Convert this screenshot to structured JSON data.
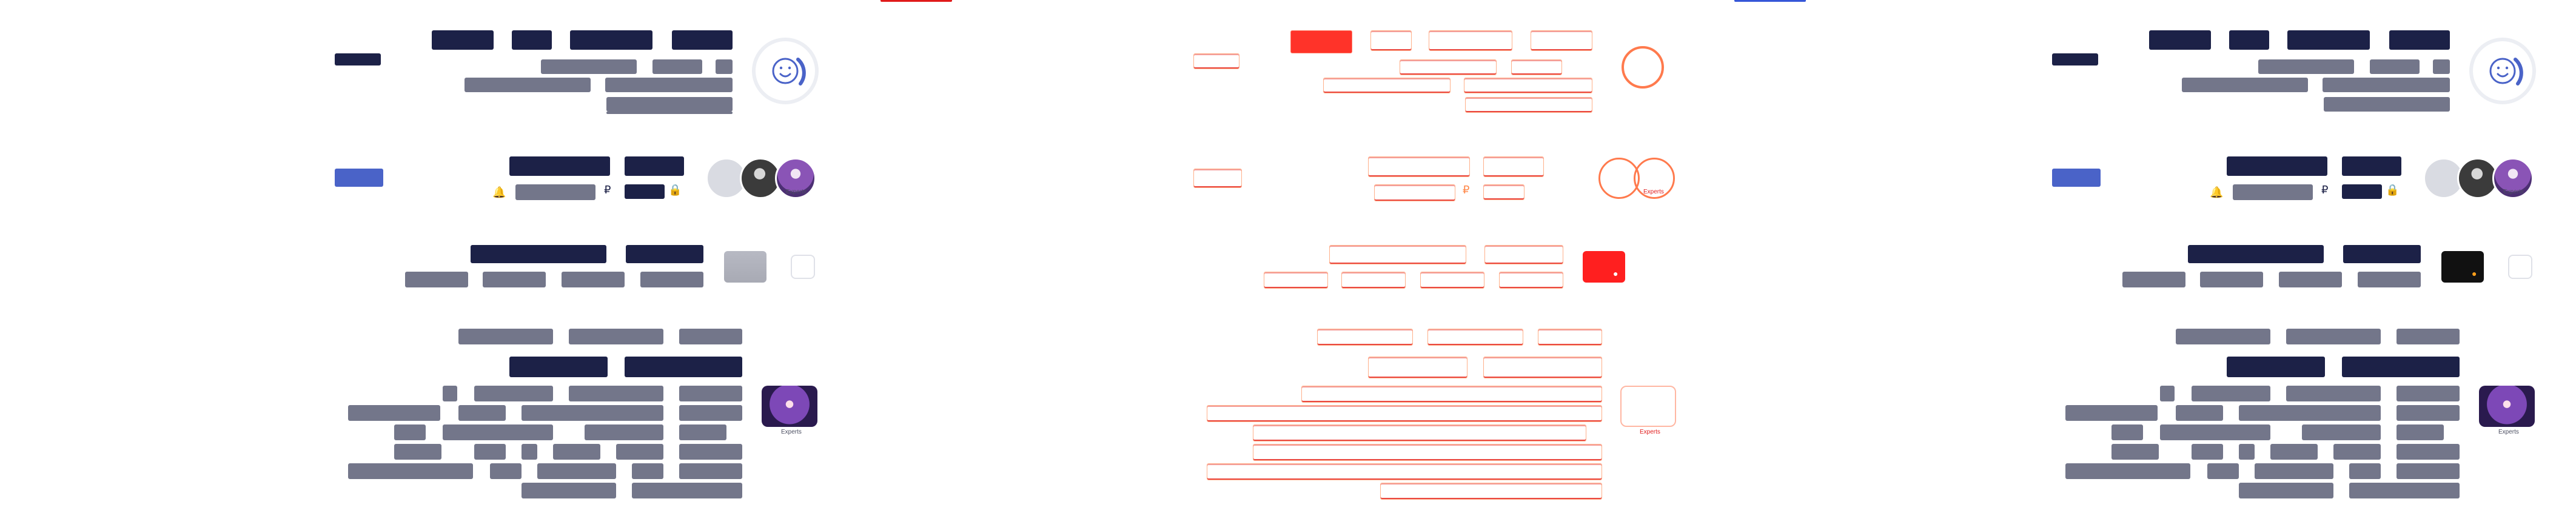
{
  "tabs": {
    "panel_2_indicator_color": "#e01b1b",
    "panel_3_indicator_color": "#3657d8"
  },
  "colors": {
    "dark_text_bar": "#1c2147",
    "muted_text_bar": "#73768a",
    "accent_blue": "#4a63c8",
    "diff_red": "#e01b1b"
  },
  "thumbnail": {
    "caption": "Experts"
  },
  "avatar_caption": "Experts",
  "currency_symbol": "₽",
  "icons": {
    "smiley": "smiley-icon",
    "bell": "bell-icon",
    "lock": "lock-icon",
    "mastercard": "mastercard-icon",
    "eye": "eye-icon"
  }
}
